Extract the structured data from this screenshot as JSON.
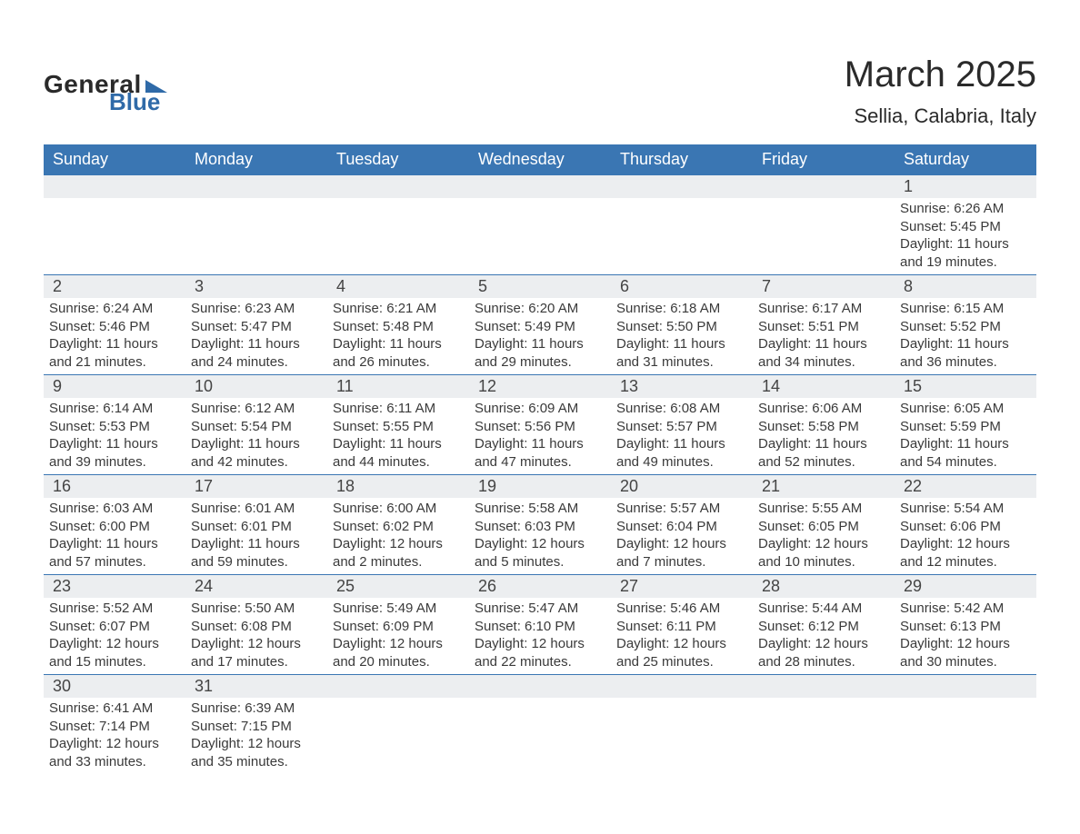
{
  "logo": {
    "general": "General",
    "blue": "Blue",
    "flag_color": "#2f6aa8"
  },
  "title": "March 2025",
  "location": "Sellia, Calabria, Italy",
  "colors": {
    "header_bg": "#3a76b3",
    "header_fg": "#ffffff",
    "daynum_bg": "#eceef0",
    "row_border": "#3a76b3",
    "text": "#3a3a3a",
    "logo_blue": "#2f6aa8",
    "background": "#ffffff"
  },
  "typography": {
    "title_fontsize": 40,
    "location_fontsize": 22,
    "weekday_fontsize": 18,
    "daynum_fontsize": 18,
    "cell_fontsize": 15,
    "font_family": "Arial"
  },
  "weekdays": [
    "Sunday",
    "Monday",
    "Tuesday",
    "Wednesday",
    "Thursday",
    "Friday",
    "Saturday"
  ],
  "weeks": [
    [
      null,
      null,
      null,
      null,
      null,
      null,
      {
        "n": "1",
        "sr": "6:26 AM",
        "ss": "5:45 PM",
        "dl": "11 hours and 19 minutes."
      }
    ],
    [
      {
        "n": "2",
        "sr": "6:24 AM",
        "ss": "5:46 PM",
        "dl": "11 hours and 21 minutes."
      },
      {
        "n": "3",
        "sr": "6:23 AM",
        "ss": "5:47 PM",
        "dl": "11 hours and 24 minutes."
      },
      {
        "n": "4",
        "sr": "6:21 AM",
        "ss": "5:48 PM",
        "dl": "11 hours and 26 minutes."
      },
      {
        "n": "5",
        "sr": "6:20 AM",
        "ss": "5:49 PM",
        "dl": "11 hours and 29 minutes."
      },
      {
        "n": "6",
        "sr": "6:18 AM",
        "ss": "5:50 PM",
        "dl": "11 hours and 31 minutes."
      },
      {
        "n": "7",
        "sr": "6:17 AM",
        "ss": "5:51 PM",
        "dl": "11 hours and 34 minutes."
      },
      {
        "n": "8",
        "sr": "6:15 AM",
        "ss": "5:52 PM",
        "dl": "11 hours and 36 minutes."
      }
    ],
    [
      {
        "n": "9",
        "sr": "6:14 AM",
        "ss": "5:53 PM",
        "dl": "11 hours and 39 minutes."
      },
      {
        "n": "10",
        "sr": "6:12 AM",
        "ss": "5:54 PM",
        "dl": "11 hours and 42 minutes."
      },
      {
        "n": "11",
        "sr": "6:11 AM",
        "ss": "5:55 PM",
        "dl": "11 hours and 44 minutes."
      },
      {
        "n": "12",
        "sr": "6:09 AM",
        "ss": "5:56 PM",
        "dl": "11 hours and 47 minutes."
      },
      {
        "n": "13",
        "sr": "6:08 AM",
        "ss": "5:57 PM",
        "dl": "11 hours and 49 minutes."
      },
      {
        "n": "14",
        "sr": "6:06 AM",
        "ss": "5:58 PM",
        "dl": "11 hours and 52 minutes."
      },
      {
        "n": "15",
        "sr": "6:05 AM",
        "ss": "5:59 PM",
        "dl": "11 hours and 54 minutes."
      }
    ],
    [
      {
        "n": "16",
        "sr": "6:03 AM",
        "ss": "6:00 PM",
        "dl": "11 hours and 57 minutes."
      },
      {
        "n": "17",
        "sr": "6:01 AM",
        "ss": "6:01 PM",
        "dl": "11 hours and 59 minutes."
      },
      {
        "n": "18",
        "sr": "6:00 AM",
        "ss": "6:02 PM",
        "dl": "12 hours and 2 minutes."
      },
      {
        "n": "19",
        "sr": "5:58 AM",
        "ss": "6:03 PM",
        "dl": "12 hours and 5 minutes."
      },
      {
        "n": "20",
        "sr": "5:57 AM",
        "ss": "6:04 PM",
        "dl": "12 hours and 7 minutes."
      },
      {
        "n": "21",
        "sr": "5:55 AM",
        "ss": "6:05 PM",
        "dl": "12 hours and 10 minutes."
      },
      {
        "n": "22",
        "sr": "5:54 AM",
        "ss": "6:06 PM",
        "dl": "12 hours and 12 minutes."
      }
    ],
    [
      {
        "n": "23",
        "sr": "5:52 AM",
        "ss": "6:07 PM",
        "dl": "12 hours and 15 minutes."
      },
      {
        "n": "24",
        "sr": "5:50 AM",
        "ss": "6:08 PM",
        "dl": "12 hours and 17 minutes."
      },
      {
        "n": "25",
        "sr": "5:49 AM",
        "ss": "6:09 PM",
        "dl": "12 hours and 20 minutes."
      },
      {
        "n": "26",
        "sr": "5:47 AM",
        "ss": "6:10 PM",
        "dl": "12 hours and 22 minutes."
      },
      {
        "n": "27",
        "sr": "5:46 AM",
        "ss": "6:11 PM",
        "dl": "12 hours and 25 minutes."
      },
      {
        "n": "28",
        "sr": "5:44 AM",
        "ss": "6:12 PM",
        "dl": "12 hours and 28 minutes."
      },
      {
        "n": "29",
        "sr": "5:42 AM",
        "ss": "6:13 PM",
        "dl": "12 hours and 30 minutes."
      }
    ],
    [
      {
        "n": "30",
        "sr": "6:41 AM",
        "ss": "7:14 PM",
        "dl": "12 hours and 33 minutes."
      },
      {
        "n": "31",
        "sr": "6:39 AM",
        "ss": "7:15 PM",
        "dl": "12 hours and 35 minutes."
      },
      null,
      null,
      null,
      null,
      null
    ]
  ],
  "labels": {
    "sunrise": "Sunrise: ",
    "sunset": "Sunset: ",
    "daylight": "Daylight: "
  }
}
